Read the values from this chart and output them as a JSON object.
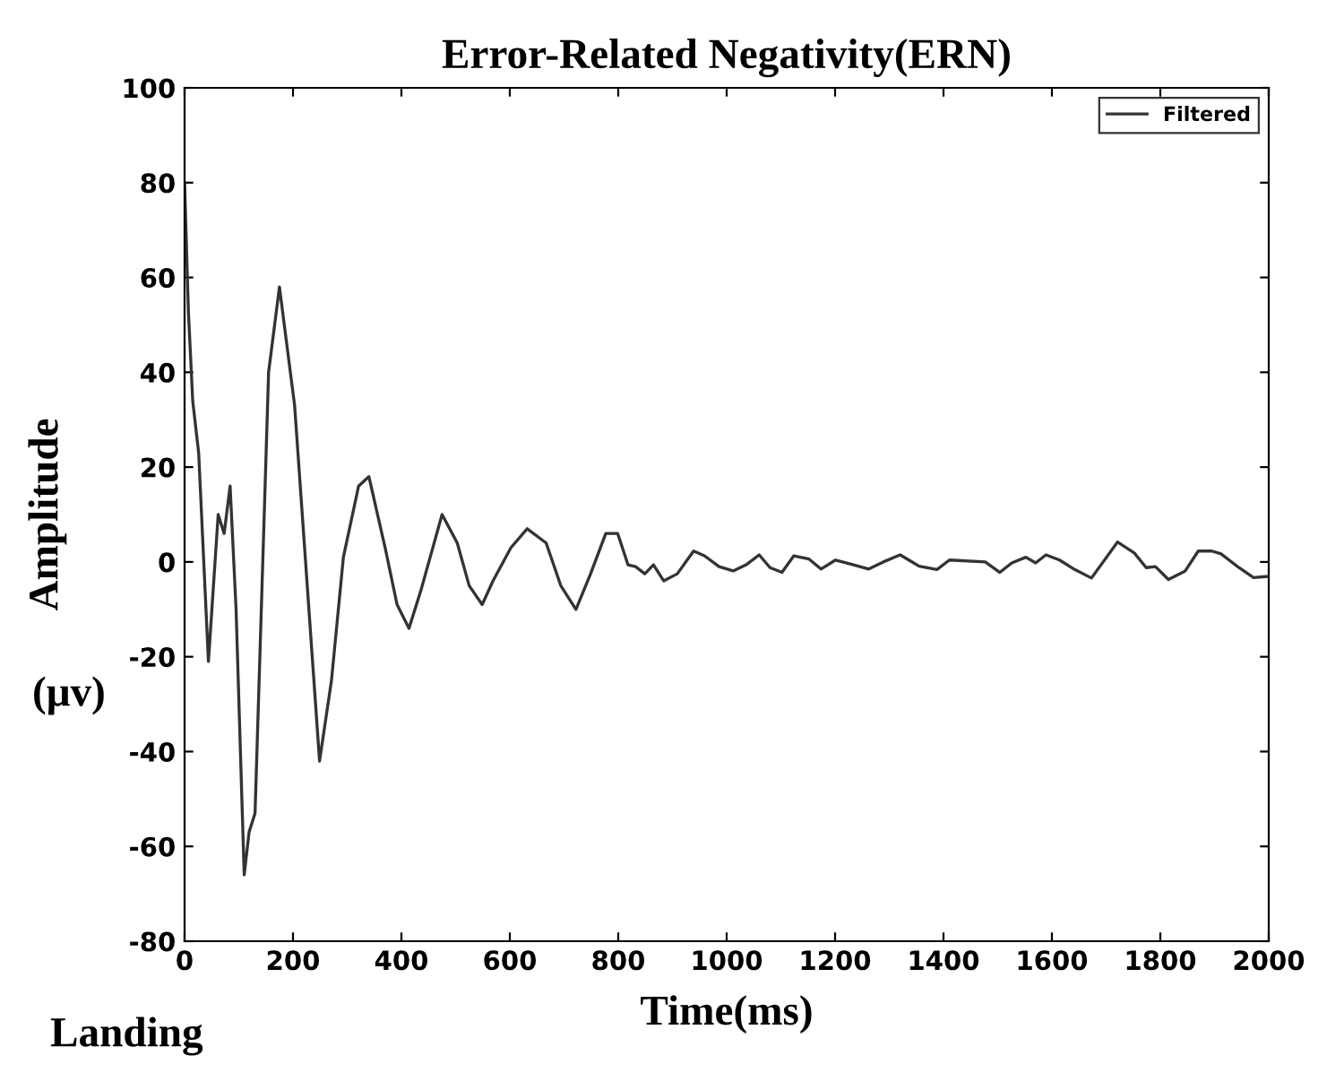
{
  "chart_data": {
    "type": "line",
    "title": "Error-Related Negativity(ERN)",
    "xlabel": "Time(ms)",
    "ylabel": "Amplitude",
    "annotations": [
      "(μv)",
      "Landing"
    ],
    "xlim": [
      0,
      2000
    ],
    "ylim": [
      -80,
      100
    ],
    "xticks": [
      0,
      200,
      400,
      600,
      800,
      1000,
      1200,
      1400,
      1600,
      1800,
      2000
    ],
    "yticks": [
      -80,
      -60,
      -40,
      -20,
      0,
      20,
      40,
      60,
      80,
      100
    ],
    "grid": false,
    "legend": "top right",
    "marker": "none",
    "line_style": "solid",
    "series": [
      {
        "name": "Filtered",
        "color": "#333333",
        "x": [
          0,
          7,
          15,
          26,
          44,
          62,
          73,
          84,
          95,
          110,
          119,
          130,
          155,
          175,
          203,
          249,
          271,
          293,
          321,
          340,
          370,
          392,
          414,
          436,
          475,
          503,
          525,
          549,
          569,
          602,
          632,
          667,
          694,
          722,
          749,
          777,
          799,
          818,
          832,
          849,
          865,
          884,
          909,
          939,
          959,
          986,
          1012,
          1036,
          1060,
          1080,
          1102,
          1124,
          1152,
          1174,
          1201,
          1234,
          1262,
          1289,
          1320,
          1355,
          1388,
          1411,
          1477,
          1504,
          1526,
          1552,
          1570,
          1589,
          1614,
          1642,
          1673,
          1721,
          1752,
          1774,
          1791,
          1815,
          1846,
          1870,
          1895,
          1912,
          1945,
          1972,
          1994,
          2000
        ],
        "values": [
          80,
          53,
          34,
          23,
          -21,
          10,
          6,
          16,
          -10,
          -66,
          -57,
          -53,
          40,
          58,
          33,
          -42,
          -25,
          1,
          16,
          18,
          3,
          -9,
          -14,
          -6,
          10,
          4,
          -5,
          -9,
          -4,
          3,
          7,
          4,
          -5,
          -10,
          -2.5,
          6,
          6,
          -0.6,
          -1,
          -2.5,
          -0.6,
          -4,
          -2.5,
          2.3,
          1.3,
          -1,
          -1.9,
          -0.6,
          1.5,
          -1.2,
          -2.2,
          1.3,
          0.6,
          -1.5,
          0.4,
          -0.6,
          -1.5,
          0,
          1.5,
          -0.9,
          -1.6,
          0.4,
          0,
          -2.2,
          -0.2,
          1,
          -0.2,
          1.5,
          0.4,
          -1.6,
          -3.4,
          4.2,
          1.9,
          -1.2,
          -1,
          -3.7,
          -1.9,
          2.3,
          2.3,
          1.7,
          -1.2,
          -3.3,
          -3.1,
          -3
        ]
      }
    ]
  }
}
